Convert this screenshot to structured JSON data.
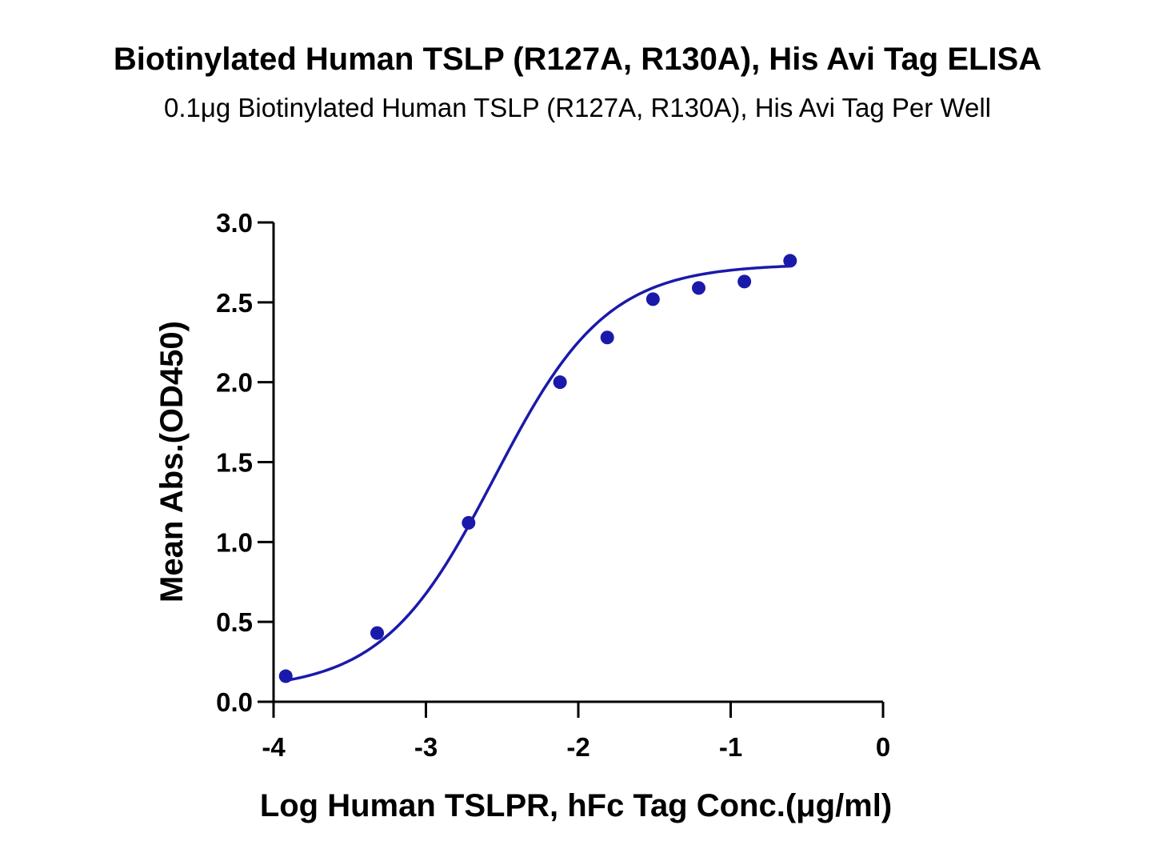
{
  "chart_data": {
    "type": "scatter",
    "title": "Biotinylated Human TSLP (R127A, R130A), His Avi Tag ELISA",
    "subtitle": "0.1μg Biotinylated Human TSLP (R127A, R130A), His Avi Tag Per Well",
    "xlabel": "Log Human TSLPR, hFc Tag Conc.(μg/ml)",
    "ylabel": "Mean Abs.(OD450)",
    "xlim": [
      -4,
      0
    ],
    "ylim": [
      0,
      3.0
    ],
    "x_ticks": [
      "-4",
      "-3",
      "-2",
      "-1",
      "0"
    ],
    "y_ticks": [
      "0.0",
      "0.5",
      "1.0",
      "1.5",
      "2.0",
      "2.5",
      "3.0"
    ],
    "grid": false,
    "legend": "none",
    "colors": {
      "series": "#1a1aaa",
      "axis": "#000000"
    },
    "series": [
      {
        "x": [
          -3.92,
          -3.32,
          -2.72,
          -2.12,
          -1.81,
          -1.51,
          -1.21,
          -0.91,
          -0.61
        ],
        "y": [
          0.16,
          0.43,
          1.12,
          2.0,
          2.28,
          2.52,
          2.59,
          2.63,
          2.76
        ],
        "fit": "sigmoidal"
      }
    ]
  }
}
